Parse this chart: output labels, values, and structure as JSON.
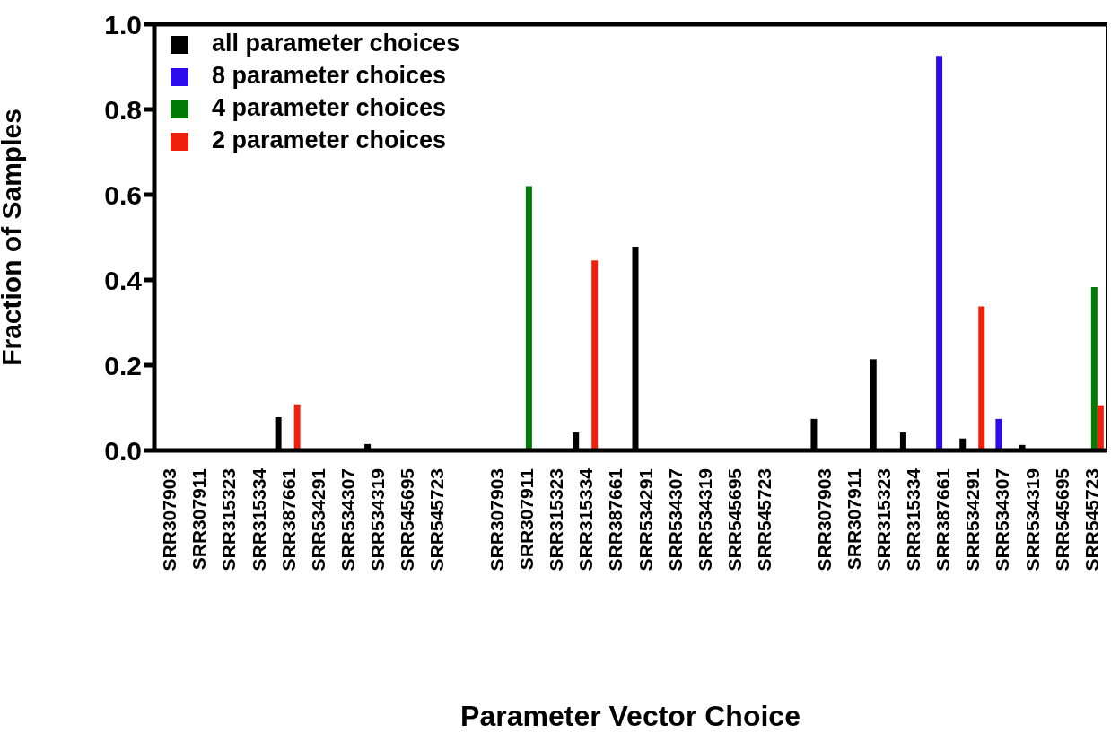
{
  "chart_data": {
    "type": "bar",
    "xlabel": "Parameter Vector Choice",
    "ylabel": "Fraction of Samples",
    "categories": [
      "SRR307903",
      "SRR307911",
      "SRR315323",
      "SRR315334",
      "SRR387661",
      "SRR534291",
      "SRR534307",
      "SRR534319",
      "SRR545695",
      "SRR545723",
      null,
      "SRR307903",
      "SRR307911",
      "SRR315323",
      "SRR315334",
      "SRR387661",
      "SRR534291",
      "SRR534307",
      "SRR534319",
      "SRR545695",
      "SRR545723",
      null,
      "SRR307903",
      "SRR307911",
      "SRR315323",
      "SRR315334",
      "SRR387661",
      "SRR534291",
      "SRR534307",
      "SRR534319",
      "SRR545695",
      "SRR545723"
    ],
    "series": [
      {
        "name": "all parameter choices",
        "color": "#000000",
        "values": [
          0,
          0,
          0,
          0,
          0.078,
          0,
          0,
          0.015,
          0,
          0,
          null,
          0,
          0,
          0,
          0.042,
          0,
          0.478,
          0,
          0,
          0,
          0,
          null,
          0.074,
          0,
          0.214,
          0.042,
          0,
          0.028,
          0,
          0.013,
          0,
          0
        ]
      },
      {
        "name": "8 parameter choices",
        "color": "#2c0ced",
        "values": [
          0,
          0,
          0,
          0,
          0,
          0,
          0,
          0,
          0,
          0,
          null,
          0,
          0,
          0,
          0,
          0,
          0,
          0,
          0,
          0,
          0,
          null,
          0,
          0,
          0,
          0,
          0.926,
          0,
          0.074,
          0,
          0,
          0
        ]
      },
      {
        "name": "4 parameter choices",
        "color": "#037a03",
        "values": [
          0,
          0,
          0,
          0,
          0,
          0,
          0,
          0,
          0,
          0,
          null,
          0,
          0.62,
          0,
          0,
          0,
          0,
          0,
          0,
          0,
          0,
          null,
          0,
          0,
          0,
          0,
          0,
          0,
          0,
          0,
          0,
          0.383
        ]
      },
      {
        "name": "2 parameter choices",
        "color": "#ee220c",
        "values": [
          0,
          0,
          0,
          0,
          0.108,
          0,
          0,
          0,
          0,
          0,
          null,
          0,
          0,
          0,
          0.446,
          0,
          0,
          0,
          0,
          0,
          0,
          null,
          0,
          0,
          0,
          0,
          0,
          0.338,
          0,
          0,
          0,
          0.106
        ]
      }
    ],
    "ylim": [
      0,
      1
    ],
    "yticks": [
      {
        "value": 0,
        "label": "0.0"
      },
      {
        "value": 0.2,
        "label": "0.2"
      },
      {
        "value": 0.4,
        "label": "0.4"
      },
      {
        "value": 0.6,
        "label": "0.6"
      },
      {
        "value": 0.8,
        "label": "0.8"
      },
      {
        "value": 1,
        "label": "1.0"
      }
    ],
    "grid": false,
    "legend": "top left"
  }
}
